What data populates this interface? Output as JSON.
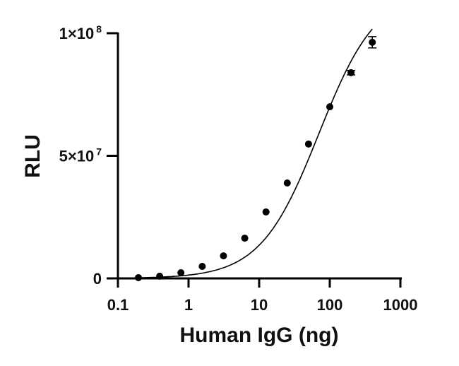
{
  "chart_data": {
    "type": "scatter",
    "title": "",
    "xlabel": "Human IgG (ng)",
    "ylabel": "RLU",
    "xscale": "log",
    "xlim": [
      0.1,
      1000
    ],
    "ylim": [
      0,
      100000000
    ],
    "x_ticks": [
      {
        "value": 0.1,
        "label": "0.1"
      },
      {
        "value": 1,
        "label": "1"
      },
      {
        "value": 10,
        "label": "10"
      },
      {
        "value": 100,
        "label": "100"
      },
      {
        "value": 1000,
        "label": "1000"
      }
    ],
    "y_ticks": [
      {
        "value": 0,
        "label": "0",
        "base": "0",
        "exp": ""
      },
      {
        "value": 50000000,
        "label": "5×10^7",
        "base": "5×10",
        "exp": "7"
      },
      {
        "value": 100000000,
        "label": "1×10^8",
        "base": "1×10",
        "exp": "8"
      }
    ],
    "grid": false,
    "legend": null,
    "series": [
      {
        "name": "Human IgG",
        "marker": "filled-circle",
        "color": "#000000",
        "fit": "sigmoidal curve",
        "x": [
          0.195,
          0.39,
          0.78,
          1.5625,
          3.125,
          6.25,
          12.5,
          25,
          50,
          100,
          200,
          400
        ],
        "y": [
          300000,
          900000,
          2300000,
          4900000,
          9200000,
          16400000,
          27100000,
          38900000,
          54800000,
          70000000,
          83900000,
          96300000
        ],
        "error": [
          0,
          0,
          0,
          0,
          0,
          0,
          0,
          0,
          0,
          0,
          900000,
          2300000
        ]
      }
    ]
  }
}
